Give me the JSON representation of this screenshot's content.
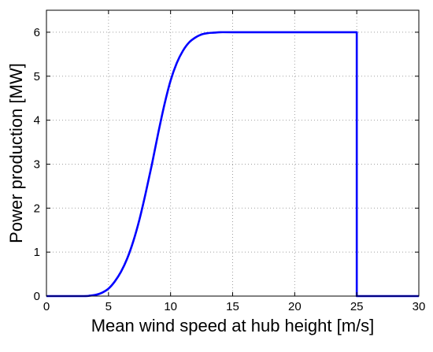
{
  "chart_data": {
    "type": "line",
    "title": "",
    "xlabel": "Mean wind speed at hub height [m/s]",
    "ylabel": "Power production [MW]",
    "xlim": [
      0,
      30
    ],
    "ylim": [
      0,
      6.5
    ],
    "xticks": [
      0,
      5,
      10,
      15,
      20,
      25,
      30
    ],
    "yticks": [
      0,
      1,
      2,
      3,
      4,
      5,
      6
    ],
    "xtick_labels": [
      "0",
      "5",
      "10",
      "15",
      "20",
      "25",
      "30"
    ],
    "ytick_labels": [
      "0",
      "1",
      "2",
      "3",
      "4",
      "5",
      "6"
    ],
    "grid": true,
    "grid_style": "dotted",
    "legend": "none",
    "series": [
      {
        "color": "#0000ff",
        "x": [
          0,
          3,
          3.5,
          4,
          4.5,
          5,
          5.5,
          6,
          6.5,
          7,
          7.5,
          8,
          8.5,
          9,
          9.5,
          10,
          10.5,
          11,
          11.5,
          12,
          12.5,
          13,
          13.5,
          14,
          15,
          20,
          25,
          25,
          30
        ],
        "y": [
          0,
          0,
          0.01,
          0.03,
          0.08,
          0.17,
          0.33,
          0.55,
          0.85,
          1.25,
          1.75,
          2.35,
          3.0,
          3.7,
          4.35,
          4.9,
          5.3,
          5.58,
          5.77,
          5.88,
          5.95,
          5.98,
          5.99,
          6.0,
          6.0,
          6.0,
          6.0,
          0,
          0
        ]
      }
    ]
  }
}
